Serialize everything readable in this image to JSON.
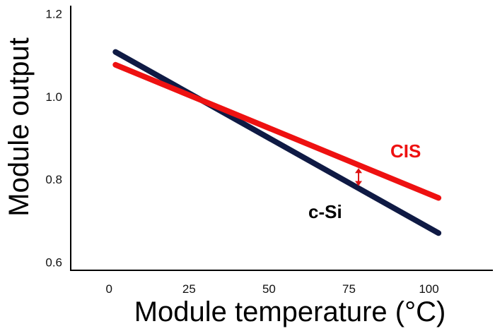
{
  "chart_data": {
    "type": "line",
    "title": "",
    "xlabel": "Module temperature (°C)",
    "ylabel": "Module output",
    "xlim": [
      -12,
      120
    ],
    "ylim": [
      0.58,
      1.22
    ],
    "x_ticks": [
      0,
      25,
      50,
      75,
      100
    ],
    "y_ticks": [
      0.6,
      0.8,
      1.0,
      1.2
    ],
    "x_tick_labels": [
      "0",
      "25",
      "50",
      "75",
      "100"
    ],
    "y_tick_labels": [
      "0.6",
      "0.8",
      "1.0",
      "1.2"
    ],
    "grid": false,
    "legend": "none",
    "series": [
      {
        "name": "c-Si",
        "color": "#0f1a44",
        "x": [
          2,
          103
        ],
        "y": [
          1.108,
          0.67
        ]
      },
      {
        "name": "CIS",
        "color": "#ee1111",
        "x": [
          2,
          103
        ],
        "y": [
          1.077,
          0.755
        ]
      }
    ],
    "annotations": [
      {
        "type": "double-arrow",
        "color": "#dd1111",
        "x": 78,
        "y_from": 0.784,
        "y_to": 0.827
      }
    ]
  }
}
